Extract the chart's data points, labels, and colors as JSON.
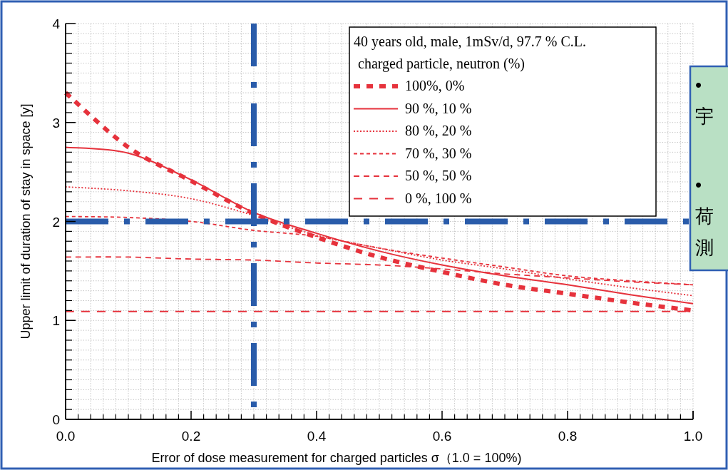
{
  "chart_data": {
    "type": "line",
    "xlabel": "Error of dose measurement for charged particles σ（1.0 = 100%)",
    "ylabel": "Upper limit of duration of stay in space [y]",
    "legend_title": "40 years old, male, 1mSv/d, 97.7 % C.L.\ncharged particle, neutron (%)",
    "x": [
      0,
      0.1,
      0.2,
      0.3,
      0.4,
      0.5,
      0.6,
      0.7,
      0.8,
      0.9,
      1.0
    ],
    "series": [
      {
        "name": "100%,  0%",
        "color": "#e6323c",
        "line_style": "dashed",
        "values": [
          3.3,
          2.75,
          2.41,
          2.08,
          1.84,
          1.64,
          1.49,
          1.36,
          1.27,
          1.18,
          1.1
        ]
      },
      {
        "name": "90 %, 10 %",
        "color": "#e6323c",
        "line_style": "solid",
        "values": [
          2.75,
          2.69,
          2.42,
          2.09,
          1.88,
          1.7,
          1.56,
          1.45,
          1.36,
          1.26,
          1.17
        ]
      },
      {
        "name": "80 %, 20 %",
        "color": "#e6323c",
        "line_style": "dotted",
        "values": [
          2.35,
          2.31,
          2.23,
          2.06,
          1.86,
          1.73,
          1.61,
          1.52,
          1.42,
          1.33,
          1.25
        ]
      },
      {
        "name": "70 %, 30 %",
        "color": "#e6323c",
        "line_style": "dashed",
        "values": [
          2.05,
          2.04,
          2.0,
          1.91,
          1.85,
          1.73,
          1.63,
          1.54,
          1.45,
          1.4,
          1.36
        ]
      },
      {
        "name": "50 %, 50 %",
        "color": "#e6323c",
        "line_style": "dashed",
        "values": [
          1.64,
          1.64,
          1.62,
          1.61,
          1.58,
          1.56,
          1.52,
          1.47,
          1.43,
          1.39,
          1.36
        ]
      },
      {
        "name": " 0 %, 100 %",
        "color": "#e6323c",
        "line_style": "dashed",
        "values": [
          1.09,
          1.09,
          1.09,
          1.09,
          1.09,
          1.09,
          1.09,
          1.09,
          1.09,
          1.09,
          1.09
        ]
      }
    ],
    "xlim": [
      0,
      1
    ],
    "ylim": [
      0,
      4
    ],
    "xticks": [
      {
        "value": 0,
        "label": "0.0"
      },
      0.2,
      0.4,
      0.6,
      0.8,
      {
        "value": 1,
        "label": "1.0"
      }
    ],
    "yticks": [
      0,
      1,
      2,
      3,
      4
    ],
    "ref_lines": [
      {
        "axis": "x",
        "value": 0.3,
        "color": "#2a5caa",
        "line_style": "dashdot"
      },
      {
        "axis": "y",
        "value": 2,
        "color": "#2a5caa",
        "line_style": "dashdot"
      }
    ],
    "annotations": [
      "• ",
      "宇",
      "• ",
      "荷",
      "測"
    ],
    "grid": true,
    "legend": "top right",
    "marker": "none"
  }
}
